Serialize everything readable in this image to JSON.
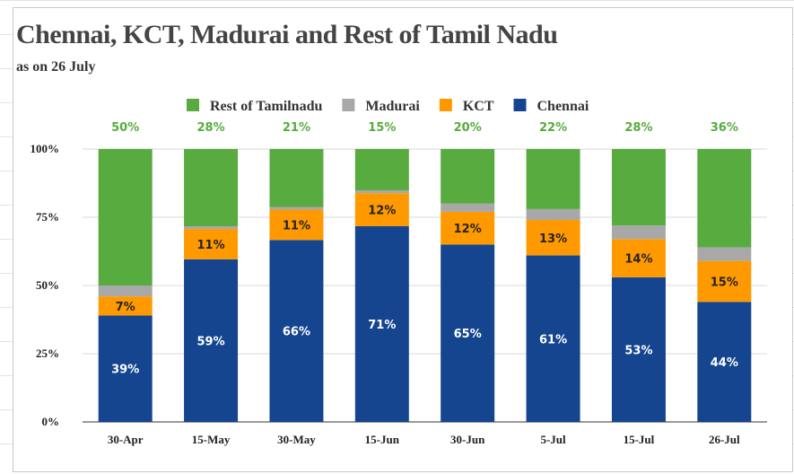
{
  "chart_data": {
    "type": "bar",
    "stacked": "percent",
    "title": "Chennai, KCT, Madurai and Rest of Tamil Nadu",
    "subtitle": "as on 26 July",
    "categories": [
      "30-Apr",
      "15-May",
      "30-May",
      "15-Jun",
      "30-Jun",
      "5-Jul",
      "15-Jul",
      "26-Jul"
    ],
    "series": [
      {
        "name": "Chennai",
        "color": "#15458f",
        "values": [
          39,
          59,
          66,
          71,
          65,
          61,
          53,
          44
        ]
      },
      {
        "name": "KCT",
        "color": "#ff9900",
        "values": [
          7,
          11,
          11,
          12,
          12,
          13,
          14,
          15
        ]
      },
      {
        "name": "Madurai",
        "color": "#a8a8a8",
        "values": [
          4,
          1,
          1,
          1,
          3,
          4,
          5,
          5
        ]
      },
      {
        "name": "Rest of Tamilnadu",
        "color": "#57ab3f",
        "values": [
          50,
          28,
          21,
          15,
          20,
          22,
          28,
          36
        ]
      }
    ],
    "legend_order": [
      "Rest of Tamilnadu",
      "Madurai",
      "KCT",
      "Chennai"
    ],
    "legend_position": "top",
    "y_ticks": [
      "0%",
      "25%",
      "50%",
      "75%",
      "100%"
    ],
    "ylim": [
      0,
      100
    ],
    "grid": true
  }
}
